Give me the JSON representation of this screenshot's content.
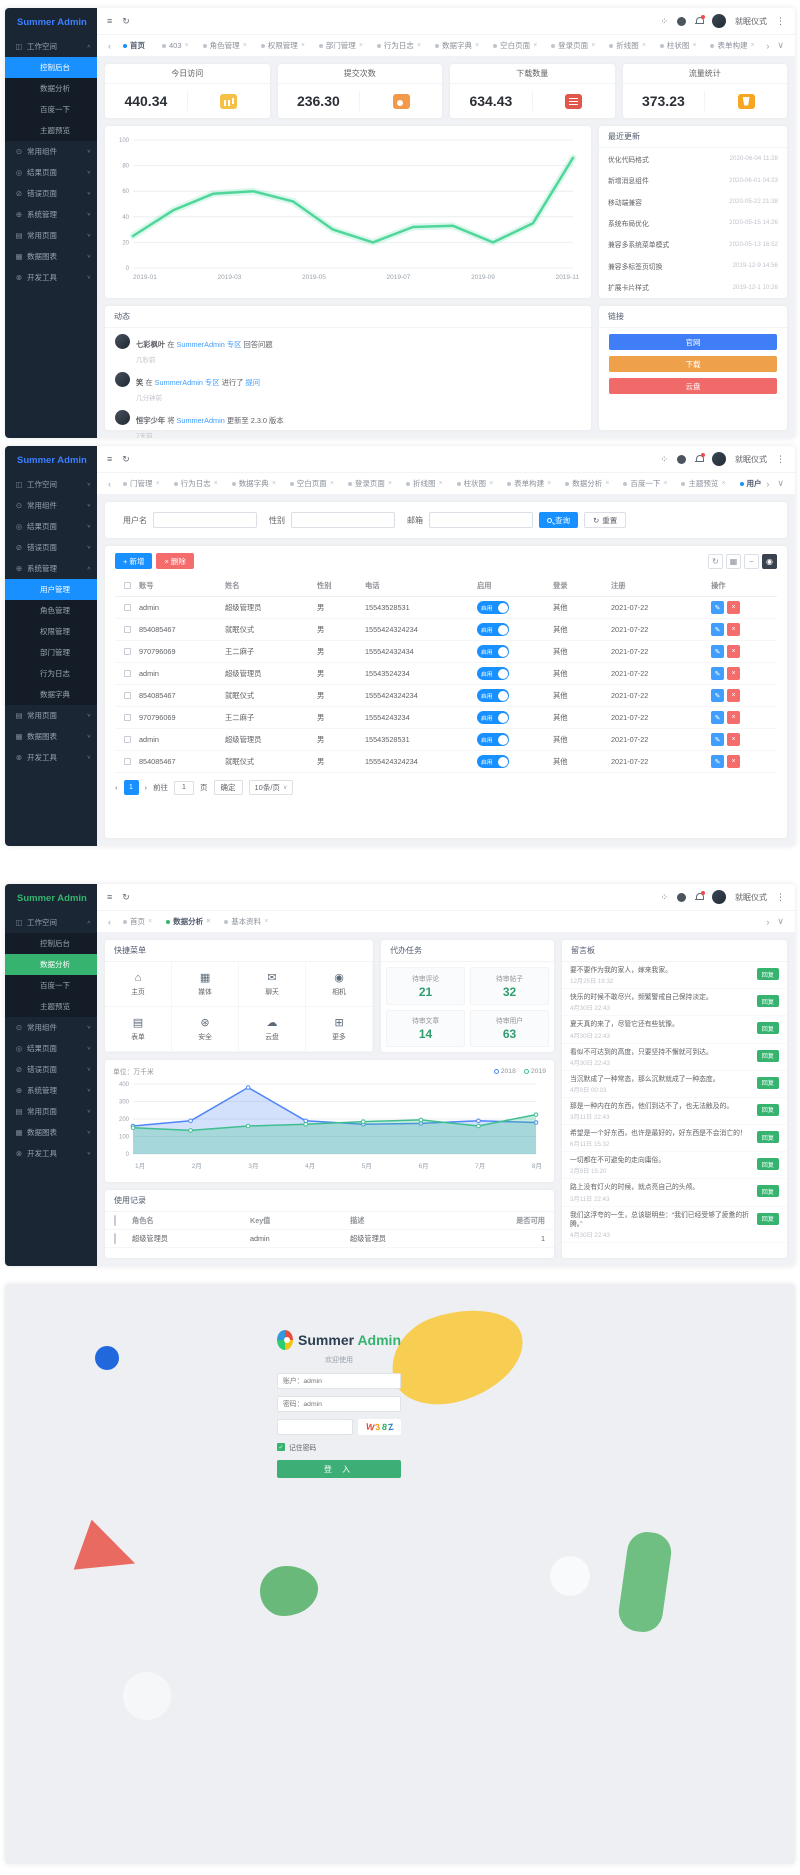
{
  "app": {
    "title": "Summer Admin"
  },
  "colors": {
    "accent_blue": "#1890ff",
    "accent_green": "#35b36f",
    "danger": "#f56c6c",
    "warning": "#efa04b"
  },
  "header": {
    "user": "就眠仪式",
    "menu_icon": "≡",
    "refresh_icon": "↻",
    "fullscreen_icon": "⁘",
    "more_icon": "⋮",
    "tab_prev": "‹",
    "tab_next": "›",
    "tab_collapse": "∨"
  },
  "panel1": {
    "sidebar_rows": [
      {
        "row_class": "row-group",
        "glyph": "◫",
        "icon": "workspace-icon",
        "label": "工作空间",
        "chev": "∧"
      },
      {
        "row_class": "row-item active-blue",
        "glyph": "",
        "icon": "",
        "label": "控制后台",
        "chev": ""
      },
      {
        "row_class": "row-item",
        "glyph": "",
        "icon": "",
        "label": "数据分析",
        "chev": ""
      },
      {
        "row_class": "row-item",
        "glyph": "",
        "icon": "",
        "label": "百度一下",
        "chev": ""
      },
      {
        "row_class": "row-item",
        "glyph": "",
        "icon": "",
        "label": "主题预览",
        "chev": ""
      },
      {
        "row_class": "row-group",
        "glyph": "⊙",
        "icon": "components-icon",
        "label": "常用组件",
        "chev": "∨"
      },
      {
        "row_class": "row-group",
        "glyph": "◎",
        "icon": "result-pages-icon",
        "label": "结果页面",
        "chev": "∨"
      },
      {
        "row_class": "row-group",
        "glyph": "⊘",
        "icon": "error-pages-icon",
        "label": "错误页面",
        "chev": "∨"
      },
      {
        "row_class": "row-group",
        "glyph": "⊕",
        "icon": "system-icon",
        "label": "系统管理",
        "chev": "∨"
      },
      {
        "row_class": "row-group",
        "glyph": "▤",
        "icon": "pages-icon",
        "label": "常用页面",
        "chev": "∨"
      },
      {
        "row_class": "row-group",
        "glyph": "▦",
        "icon": "charts-icon",
        "label": "数据图表",
        "chev": "∨"
      },
      {
        "row_class": "row-group",
        "glyph": "⊗",
        "icon": "tools-icon",
        "label": "开发工具",
        "chev": "∨"
      }
    ],
    "tabs": [
      {
        "label": "首页",
        "dot_color": "#1890ff",
        "close": "",
        "tab_class": "tab-active"
      },
      {
        "label": "403",
        "dot_color": "#c0c4cc",
        "close": "×",
        "tab_class": ""
      },
      {
        "label": "角色管理",
        "dot_color": "#c0c4cc",
        "close": "×",
        "tab_class": ""
      },
      {
        "label": "权限管理",
        "dot_color": "#c0c4cc",
        "close": "×",
        "tab_class": ""
      },
      {
        "label": "部门管理",
        "dot_color": "#c0c4cc",
        "close": "×",
        "tab_class": ""
      },
      {
        "label": "行为日志",
        "dot_color": "#c0c4cc",
        "close": "×",
        "tab_class": ""
      },
      {
        "label": "数据字典",
        "dot_color": "#c0c4cc",
        "close": "×",
        "tab_class": ""
      },
      {
        "label": "空白页面",
        "dot_color": "#c0c4cc",
        "close": "×",
        "tab_class": ""
      },
      {
        "label": "登录页面",
        "dot_color": "#c0c4cc",
        "close": "×",
        "tab_class": ""
      },
      {
        "label": "折线图",
        "dot_color": "#c0c4cc",
        "close": "×",
        "tab_class": ""
      },
      {
        "label": "柱状图",
        "dot_color": "#c0c4cc",
        "close": "×",
        "tab_class": ""
      },
      {
        "label": "表单构建",
        "dot_color": "#c0c4cc",
        "close": "×",
        "tab_class": ""
      }
    ],
    "stats": [
      {
        "title": "今日访问",
        "value": "440.34",
        "icon": "visits-icon",
        "icon_class": "ic-visits"
      },
      {
        "title": "提交次数",
        "value": "236.30",
        "icon": "submits-icon",
        "icon_class": "ic-submit"
      },
      {
        "title": "下载数量",
        "value": "634.43",
        "icon": "downloads-icon",
        "icon_class": "ic-download"
      },
      {
        "title": "流量统计",
        "value": "373.23",
        "icon": "traffic-icon",
        "icon_class": "ic-traffic"
      }
    ],
    "chart_data": {
      "type": "line",
      "x": [
        "2019-01",
        "2019-03",
        "2019-05",
        "2019-07",
        "2019-09",
        "2019-11"
      ],
      "ylim": [
        0,
        100
      ],
      "yticks": [
        0,
        20,
        40,
        60,
        80,
        100
      ],
      "grid": true,
      "legend": "none",
      "series": [
        {
          "name": "访问量",
          "color": "#4fd69a",
          "glow": true,
          "values": [
            25,
            45,
            58,
            60,
            52,
            30,
            20,
            32,
            33,
            20,
            35,
            86
          ]
        }
      ]
    },
    "updates": {
      "title": "最近更新",
      "items": [
        {
          "text": "优化代码格式",
          "time": "2020-06-04 11:28"
        },
        {
          "text": "新增消息组件",
          "time": "2020-06-01 04:23"
        },
        {
          "text": "移动端兼容",
          "time": "2020-05-22 21:38"
        },
        {
          "text": "系统布局优化",
          "time": "2020-05-15 14:26"
        },
        {
          "text": "兼容多系统菜单模式",
          "time": "2020-05-13 16:52"
        },
        {
          "text": "兼容多标签页切换",
          "time": "2019-12-9 14:56"
        },
        {
          "text": "扩展卡片样式",
          "time": "2019-12-1 10:26"
        }
      ]
    },
    "feed": {
      "title": "动态",
      "items": [
        {
          "user": "七彩枫叶",
          "t1": "在",
          "link1": "SummerAdmin 专区",
          "t2": "回答问题",
          "link2": "",
          "time": "几秒前"
        },
        {
          "user": "笑",
          "t1": "在",
          "link1": "SummerAdmin 专区",
          "t2": "进行了",
          "link2": "提问",
          "time": "几分钟前"
        },
        {
          "user": "恒宇少年",
          "t1": "将",
          "link1": "SummerAdmin",
          "t2": "更新至 2.3.0 版本",
          "link2": "",
          "time": "7天前"
        }
      ]
    },
    "links": {
      "title": "链接",
      "buttons": [
        {
          "label": "官网",
          "color": "#3f7ef7"
        },
        {
          "label": "下载",
          "color": "#efa04b"
        },
        {
          "label": "云盘",
          "color": "#f06a6a"
        }
      ]
    }
  },
  "panel2": {
    "sidebar_rows": [
      {
        "row_class": "row-group",
        "glyph": "◫",
        "icon": "workspace-icon",
        "label": "工作空间",
        "chev": "∨"
      },
      {
        "row_class": "row-group",
        "glyph": "⊙",
        "icon": "components-icon",
        "label": "常用组件",
        "chev": "∨"
      },
      {
        "row_class": "row-group",
        "glyph": "◎",
        "icon": "result-pages-icon",
        "label": "结果页面",
        "chev": "∨"
      },
      {
        "row_class": "row-group",
        "glyph": "⊘",
        "icon": "error-pages-icon",
        "label": "错误页面",
        "chev": "∨"
      },
      {
        "row_class": "row-group",
        "glyph": "⊕",
        "icon": "system-icon",
        "label": "系统管理",
        "chev": "∧"
      },
      {
        "row_class": "row-item active-blue",
        "glyph": "",
        "icon": "",
        "label": "用户管理",
        "chev": ""
      },
      {
        "row_class": "row-item",
        "glyph": "",
        "icon": "",
        "label": "角色管理",
        "chev": ""
      },
      {
        "row_class": "row-item",
        "glyph": "",
        "icon": "",
        "label": "权限管理",
        "chev": ""
      },
      {
        "row_class": "row-item",
        "glyph": "",
        "icon": "",
        "label": "部门管理",
        "chev": ""
      },
      {
        "row_class": "row-item",
        "glyph": "",
        "icon": "",
        "label": "行为日志",
        "chev": ""
      },
      {
        "row_class": "row-item",
        "glyph": "",
        "icon": "",
        "label": "数据字典",
        "chev": ""
      },
      {
        "row_class": "row-group",
        "glyph": "▤",
        "icon": "pages-icon",
        "label": "常用页面",
        "chev": "∨"
      },
      {
        "row_class": "row-group",
        "glyph": "▦",
        "icon": "charts-icon",
        "label": "数据图表",
        "chev": "∨"
      },
      {
        "row_class": "row-group",
        "glyph": "⊗",
        "icon": "tools-icon",
        "label": "开发工具",
        "chev": "∨"
      }
    ],
    "tabs": [
      {
        "label": "门管理",
        "dot_color": "#c0c4cc",
        "close": "×",
        "tab_class": ""
      },
      {
        "label": "行为日志",
        "dot_color": "#c0c4cc",
        "close": "×",
        "tab_class": ""
      },
      {
        "label": "数据字典",
        "dot_color": "#c0c4cc",
        "close": "×",
        "tab_class": ""
      },
      {
        "label": "空白页面",
        "dot_color": "#c0c4cc",
        "close": "×",
        "tab_class": ""
      },
      {
        "label": "登录页面",
        "dot_color": "#c0c4cc",
        "close": "×",
        "tab_class": ""
      },
      {
        "label": "折线图",
        "dot_color": "#c0c4cc",
        "close": "×",
        "tab_class": ""
      },
      {
        "label": "柱状图",
        "dot_color": "#c0c4cc",
        "close": "×",
        "tab_class": ""
      },
      {
        "label": "表单构建",
        "dot_color": "#c0c4cc",
        "close": "×",
        "tab_class": ""
      },
      {
        "label": "数据分析",
        "dot_color": "#c0c4cc",
        "close": "×",
        "tab_class": ""
      },
      {
        "label": "百度一下",
        "dot_color": "#c0c4cc",
        "close": "×",
        "tab_class": ""
      },
      {
        "label": "主题预览",
        "dot_color": "#c0c4cc",
        "close": "×",
        "tab_class": ""
      },
      {
        "label": "用户管理",
        "dot_color": "#1890ff",
        "close": "×",
        "tab_class": "tab-active"
      }
    ],
    "search": {
      "fields": [
        {
          "label": "用户名"
        },
        {
          "label": "性别"
        },
        {
          "label": "邮箱"
        }
      ],
      "query": "查询",
      "reset": "重置"
    },
    "toolbar": {
      "add": "+ 新增",
      "del": "× 删除"
    },
    "table": {
      "columns": [
        "账号",
        "姓名",
        "性别",
        "电话",
        "启用",
        "登录",
        "注册",
        "操作"
      ],
      "toggle_label": "启用",
      "rows": [
        {
          "account": "admin",
          "name": "超级管理员",
          "gender": "男",
          "phone": "15543528531",
          "role": "其他",
          "reg": "2021-07-22"
        },
        {
          "account": "854085467",
          "name": "就眠仪式",
          "gender": "男",
          "phone": "1555424324234",
          "role": "其他",
          "reg": "2021-07-22"
        },
        {
          "account": "970796069",
          "name": "王二麻子",
          "gender": "男",
          "phone": "155542432434",
          "role": "其他",
          "reg": "2021-07-22"
        },
        {
          "account": "admin",
          "name": "超级管理员",
          "gender": "男",
          "phone": "15543524234",
          "role": "其他",
          "reg": "2021-07-22"
        },
        {
          "account": "854085467",
          "name": "就眠仪式",
          "gender": "男",
          "phone": "1555424324234",
          "role": "其他",
          "reg": "2021-07-22"
        },
        {
          "account": "970796069",
          "name": "王二麻子",
          "gender": "男",
          "phone": "15554243234",
          "role": "其他",
          "reg": "2021-07-22"
        },
        {
          "account": "admin",
          "name": "超级管理员",
          "gender": "男",
          "phone": "15543528531",
          "role": "其他",
          "reg": "2021-07-22"
        },
        {
          "account": "854085467",
          "name": "就眠仪式",
          "gender": "男",
          "phone": "1555424324234",
          "role": "其他",
          "reg": "2021-07-22"
        }
      ]
    },
    "pagination": {
      "prev": "‹",
      "page": "1",
      "next": "›",
      "goto": "前往",
      "goto_value": "1",
      "unit": "页",
      "confirm": "确定",
      "size": "10条/页"
    }
  },
  "panel3": {
    "sidebar_rows": [
      {
        "row_class": "row-group",
        "glyph": "◫",
        "icon": "workspace-icon",
        "label": "工作空间",
        "chev": "∧"
      },
      {
        "row_class": "row-item",
        "glyph": "",
        "icon": "",
        "label": "控制后台",
        "chev": ""
      },
      {
        "row_class": "row-item active-green",
        "glyph": "",
        "icon": "",
        "label": "数据分析",
        "chev": ""
      },
      {
        "row_class": "row-item",
        "glyph": "",
        "icon": "",
        "label": "百度一下",
        "chev": ""
      },
      {
        "row_class": "row-item",
        "glyph": "",
        "icon": "",
        "label": "主题预览",
        "chev": ""
      },
      {
        "row_class": "row-group",
        "glyph": "⊙",
        "icon": "components-icon",
        "label": "常用组件",
        "chev": "∨"
      },
      {
        "row_class": "row-group",
        "glyph": "◎",
        "icon": "result-pages-icon",
        "label": "结果页面",
        "chev": "∨"
      },
      {
        "row_class": "row-group",
        "glyph": "⊘",
        "icon": "error-pages-icon",
        "label": "错误页面",
        "chev": "∨"
      },
      {
        "row_class": "row-group",
        "glyph": "⊕",
        "icon": "system-icon",
        "label": "系统管理",
        "chev": "∨"
      },
      {
        "row_class": "row-group",
        "glyph": "▤",
        "icon": "pages-icon",
        "label": "常用页面",
        "chev": "∨"
      },
      {
        "row_class": "row-group",
        "glyph": "▦",
        "icon": "charts-icon",
        "label": "数据图表",
        "chev": "∨"
      },
      {
        "row_class": "row-group",
        "glyph": "⊗",
        "icon": "tools-icon",
        "label": "开发工具",
        "chev": "∨"
      }
    ],
    "tabs": [
      {
        "label": "首页",
        "dot_color": "#c0c4cc",
        "close": "×",
        "tab_class": ""
      },
      {
        "label": "数据分析",
        "dot_color": "#35b36f",
        "close": "×",
        "tab_class": "tab-active"
      },
      {
        "label": "基本资料",
        "dot_color": "#c0c4cc",
        "close": "×",
        "tab_class": ""
      }
    ],
    "quick": {
      "title": "快捷菜单",
      "items": [
        {
          "label": "主页",
          "glyph": "⌂",
          "icon": "home-icon"
        },
        {
          "label": "媒体",
          "glyph": "▦",
          "icon": "media-icon"
        },
        {
          "label": "聊天",
          "glyph": "✉",
          "icon": "chat-icon"
        },
        {
          "label": "相机",
          "glyph": "◉",
          "icon": "camera-icon"
        },
        {
          "label": "表单",
          "glyph": "▤",
          "icon": "form-icon"
        },
        {
          "label": "安全",
          "glyph": "⊛",
          "icon": "security-icon"
        },
        {
          "label": "云盘",
          "glyph": "☁",
          "icon": "cloud-icon"
        },
        {
          "label": "更多",
          "glyph": "⊞",
          "icon": "more-icon"
        }
      ]
    },
    "tasks": {
      "title": "代办任务",
      "items": [
        {
          "label": "待审评论",
          "value": "21"
        },
        {
          "label": "待审帖子",
          "value": "32"
        },
        {
          "label": "待审文章",
          "value": "14"
        },
        {
          "label": "待审用户",
          "value": "63"
        }
      ]
    },
    "chart_data": {
      "type": "area",
      "unit": "单位：万千米",
      "x": [
        "1月",
        "2月",
        "3月",
        "4月",
        "5月",
        "6月",
        "7月",
        "8月"
      ],
      "ylim": [
        0,
        400
      ],
      "yticks": [
        0,
        100,
        200,
        300,
        400
      ],
      "legend_pos": "top-right",
      "series": [
        {
          "name": "2018",
          "color": "#4f86f7",
          "fill": "rgba(79,134,247,0.25)",
          "markers": true,
          "values": [
            160,
            190,
            380,
            190,
            170,
            175,
            190,
            180
          ]
        },
        {
          "name": "2019",
          "color": "#3fbf8f",
          "fill": "rgba(63,191,143,0.30)",
          "markers": true,
          "values": [
            150,
            135,
            160,
            170,
            185,
            195,
            160,
            225
          ]
        }
      ]
    },
    "records": {
      "title": "使用记录",
      "columns": [
        "角色名",
        "Key值",
        "描述",
        "是否可用"
      ],
      "rows": [
        {
          "role": "超级管理员",
          "key": "admin",
          "desc": "超级管理员",
          "avail": "1"
        }
      ]
    },
    "board": {
      "title": "留言板",
      "reply_label": "回复",
      "items": [
        {
          "text": "要不要作为我的家人，嫁来我家。",
          "time": "12月25日 19:32"
        },
        {
          "text": "快乐的时候不敢尽兴，频繁警戒自己保持淡定。",
          "time": "4月30日 22:43"
        },
        {
          "text": "夏天真的来了，尽管它还有些犹豫。",
          "time": "4月30日 22:43"
        },
        {
          "text": "看似不可达到的高度，只要坚持不懈就可到达。",
          "time": "4月30日 22:43"
        },
        {
          "text": "当沉默成了一种常态，那么沉默就成了一种态度。",
          "time": "4月9日 00:03"
        },
        {
          "text": "那是一种内在的东西，他们到达不了，也无法触及的。",
          "time": "3月11日 22:43"
        },
        {
          "text": "希望是一个好东西，也许是最好的，好东西是不会消亡的！",
          "time": "6月11日 15:32"
        },
        {
          "text": "一切都在不可避免的走向庸俗。",
          "time": "2月9日 15:20"
        },
        {
          "text": "路上没有灯火的时候，就点亮自己的头颅。",
          "time": "3月11日 22:43"
        },
        {
          "text": "我们这浮夸的一生，总该聪明些：“我们已经受够了疲惫的折腾。”",
          "time": "4月30日 22:43"
        }
      ]
    }
  },
  "panel4": {
    "title_a": "Summer",
    "title_b": "Admin",
    "subtitle": "欢迎使用",
    "username_placeholder": "账户：admin",
    "password_placeholder": "密码：admin",
    "captcha": [
      {
        "ch": "W",
        "color": "#e74c3c"
      },
      {
        "ch": "3",
        "color": "#f39c12"
      },
      {
        "ch": "8",
        "color": "#27ae60"
      },
      {
        "ch": "Z",
        "color": "#2980b9"
      }
    ],
    "remember": "记住密码",
    "login": "登 入"
  }
}
